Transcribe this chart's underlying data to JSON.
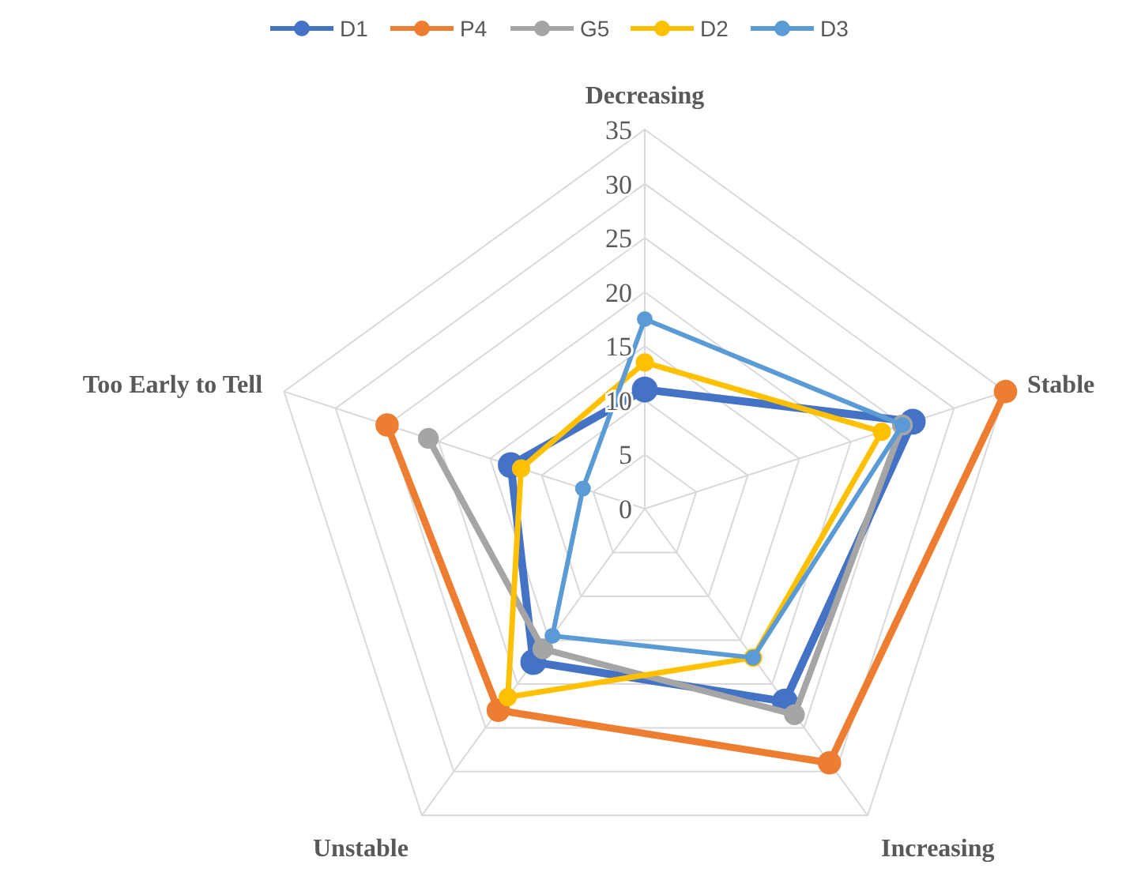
{
  "chart_data": {
    "type": "radar",
    "categories": [
      "Decreasing",
      "Stable",
      "Increasing",
      "Unstable",
      "Too Early to Tell"
    ],
    "series": [
      {
        "name": "D1",
        "color": "#4472c4",
        "values": [
          11,
          26,
          22,
          17.5,
          13
        ]
      },
      {
        "name": "P4",
        "color": "#ed7d31",
        "values": [
          null,
          35,
          29,
          23,
          25
        ]
      },
      {
        "name": "G5",
        "color": "#a5a5a5",
        "values": [
          null,
          25,
          23.5,
          16,
          21
        ]
      },
      {
        "name": "D2",
        "color": "#ffc000",
        "values": [
          13.5,
          23,
          17,
          21.5,
          12
        ]
      },
      {
        "name": "D3",
        "color": "#5b9bd5",
        "values": [
          17.5,
          25,
          17,
          14.5,
          6
        ]
      }
    ],
    "ylim": [
      0,
      35
    ],
    "yticks": [
      0,
      5,
      10,
      15,
      20,
      25,
      30,
      35
    ],
    "grid": true,
    "legend": "top",
    "marker": "circle",
    "line_style": "solid"
  }
}
